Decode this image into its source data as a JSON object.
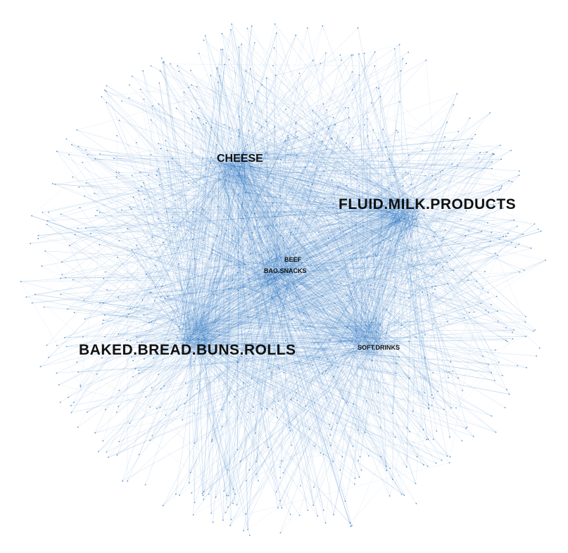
{
  "graph": {
    "edge_color": "#1f6fbf",
    "node_color": "#2a6db5",
    "background": "#ffffff",
    "hub_labels": {
      "baked": "BAKED.BREAD.BUNS.ROLLS",
      "milk": "FLUID.MILK.PRODUCTS",
      "cheese": "CHEESE",
      "soft": "SOFT.DRINKS",
      "bag": "BAG.SNACKS",
      "beef": "BEEF"
    }
  }
}
